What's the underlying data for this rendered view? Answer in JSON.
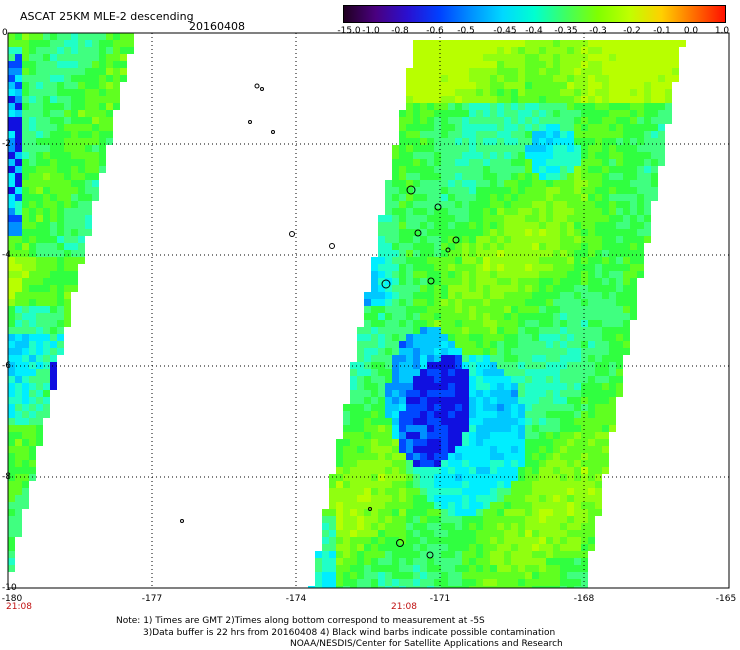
{
  "header": {
    "title": "ASCAT 25KM MLE-2 descending",
    "date": "20160408"
  },
  "colorbar": {
    "labels": [
      "-15.0",
      "-1.0",
      "-0.8",
      "-0.6",
      "-0.5",
      "-0.45",
      "-0.4",
      "-0.35",
      "-0.3",
      "-0.2",
      "-0.1",
      "0.0",
      "1.0"
    ],
    "stops": [
      "#200020",
      "#4a0080",
      "#2a10d0",
      "#0040ff",
      "#0090ff",
      "#00d8ff",
      "#00ffd0",
      "#40ff60",
      "#80ff00",
      "#c0ff00",
      "#ffd000",
      "#ff7000",
      "#ff1000"
    ]
  },
  "axes": {
    "x_ticks": [
      "-180",
      "-177",
      "-174",
      "-171",
      "-168",
      "-165"
    ],
    "y_ticks": [
      "0",
      "-2",
      "-4",
      "-6",
      "-8",
      "-10"
    ],
    "time_labels": [
      "21:08",
      "21:08"
    ]
  },
  "notes": {
    "line1": "Note: 1) Times are GMT 2)Times along bottom correspond to measurement at -5S",
    "line2": "3)Data buffer is 22 hrs from 20160408 4) Black wind barbs indicate possible contamination",
    "line3": "NOAA/NESDIS/Center for Satellite Applications and Research"
  }
}
